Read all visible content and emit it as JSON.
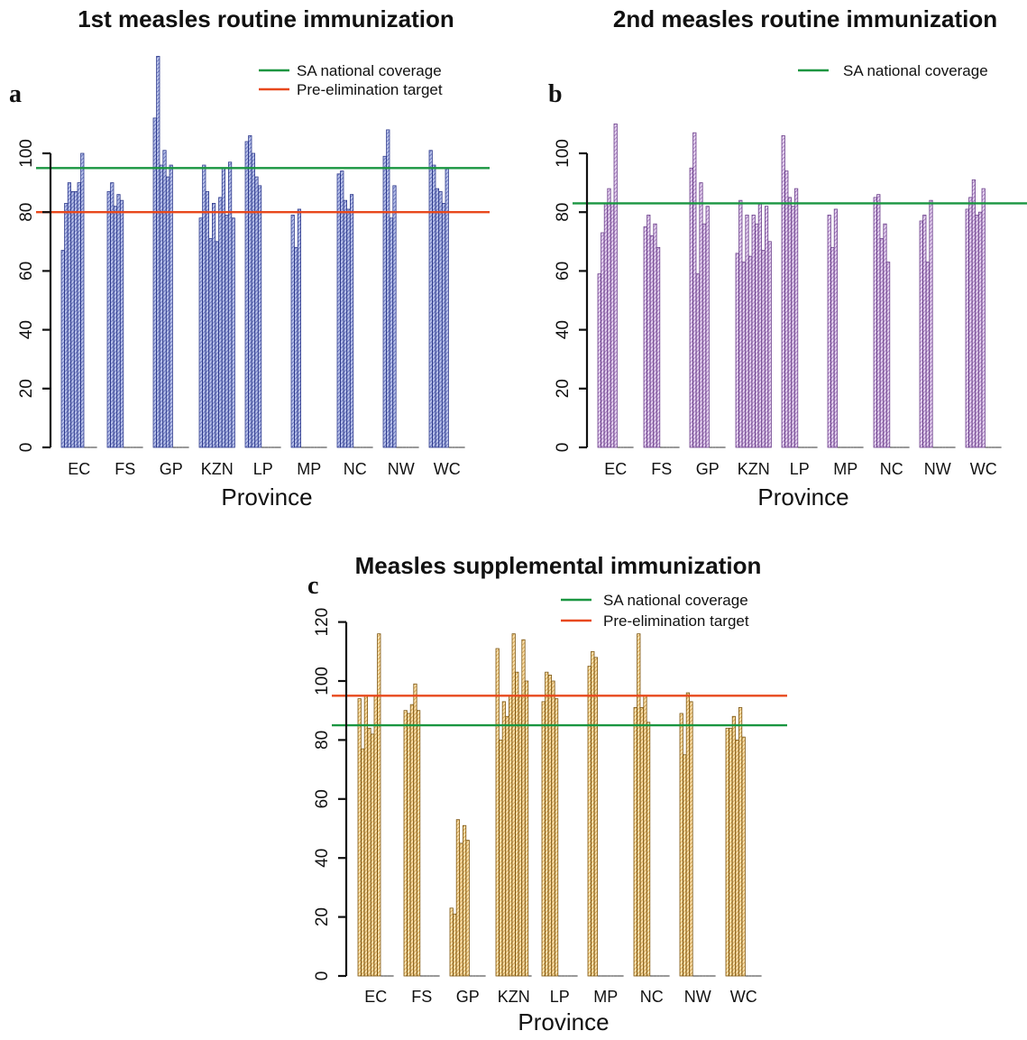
{
  "colors": {
    "national": "#1a9641",
    "target": "#e8481c",
    "axis": "#111111"
  },
  "chart_data": [
    {
      "id": "a",
      "type": "bar",
      "title": "1st measles routine immunization",
      "panel_label": "a",
      "xlabel": "Province",
      "ylabel": "",
      "ylim": [
        0,
        120
      ],
      "yticks": [
        0,
        20,
        40,
        60,
        80,
        100
      ],
      "categories": [
        "EC",
        "FS",
        "GP",
        "KZN",
        "LP",
        "MP",
        "NC",
        "NW",
        "WC"
      ],
      "bar_fill": "#8a97d6",
      "bar_stroke": "#2e3a8c",
      "groups": [
        [
          67,
          83,
          90,
          87,
          87,
          90,
          100
        ],
        [
          87,
          90,
          82,
          86,
          84
        ],
        [
          112,
          133,
          96,
          101,
          92,
          96
        ],
        [
          78,
          96,
          87,
          71,
          83,
          70,
          85,
          95,
          79,
          97,
          78
        ],
        [
          104,
          106,
          100,
          92,
          89
        ],
        [
          79,
          68,
          81
        ],
        [
          93,
          94,
          84,
          81,
          86
        ],
        [
          99,
          108,
          78,
          89
        ],
        [
          101,
          96,
          88,
          87,
          83,
          95
        ]
      ],
      "hlines": [
        {
          "name": "SA national coverage",
          "value": 95,
          "color": "#1a9641"
        },
        {
          "name": "Pre-elimination target",
          "value": 80,
          "color": "#e8481c"
        }
      ],
      "legend": [
        "SA national coverage",
        "Pre-elimination target"
      ],
      "legend_position": "top-right"
    },
    {
      "id": "b",
      "type": "bar",
      "title": "2nd measles routine immunization",
      "panel_label": "b",
      "xlabel": "Province",
      "ylabel": "",
      "ylim": [
        0,
        120
      ],
      "yticks": [
        0,
        20,
        40,
        60,
        80,
        100
      ],
      "categories": [
        "EC",
        "FS",
        "GP",
        "KZN",
        "LP",
        "MP",
        "NC",
        "NW",
        "WC"
      ],
      "bar_fill": "#c9a7df",
      "bar_stroke": "#6b3f8a",
      "groups": [
        [
          59,
          73,
          83,
          88,
          83,
          110
        ],
        [
          75,
          79,
          72,
          76,
          68
        ],
        [
          95,
          107,
          59,
          90,
          76,
          82
        ],
        [
          66,
          84,
          63,
          79,
          65,
          79,
          76,
          83,
          67,
          82,
          70
        ],
        [
          106,
          94,
          85,
          82,
          88
        ],
        [
          79,
          68,
          81
        ],
        [
          85,
          86,
          71,
          76,
          63
        ],
        [
          77,
          79,
          63,
          84
        ],
        [
          81,
          85,
          91,
          79,
          80,
          88
        ]
      ],
      "hlines": [
        {
          "name": "SA national coverage",
          "value": 83,
          "color": "#1a9641"
        }
      ],
      "legend": [
        "SA national coverage"
      ],
      "legend_position": "top-right"
    },
    {
      "id": "c",
      "type": "bar",
      "title": "Measles supplemental immunization",
      "panel_label": "c",
      "xlabel": "Province",
      "ylabel": "",
      "ylim": [
        0,
        120
      ],
      "yticks": [
        0,
        20,
        40,
        60,
        80,
        100,
        120
      ],
      "categories": [
        "EC",
        "FS",
        "GP",
        "KZN",
        "LP",
        "MP",
        "NC",
        "NW",
        "WC"
      ],
      "bar_fill": "#f7c97e",
      "bar_stroke": "#7a5410",
      "groups": [
        [
          94,
          77,
          95,
          84,
          82,
          95,
          116
        ],
        [
          90,
          89,
          92,
          99,
          90
        ],
        [
          23,
          21,
          53,
          45,
          51,
          46
        ],
        [
          111,
          80,
          93,
          88,
          95,
          116,
          103,
          95,
          114,
          100
        ],
        [
          93,
          103,
          102,
          100,
          94
        ],
        [
          105,
          110,
          108
        ],
        [
          91,
          116,
          91,
          95,
          86
        ],
        [
          89,
          75,
          96,
          93
        ],
        [
          84,
          84,
          88,
          80,
          91,
          81
        ]
      ],
      "hlines": [
        {
          "name": "SA national coverage",
          "value": 85,
          "color": "#1a9641"
        },
        {
          "name": "Pre-elimination target",
          "value": 95,
          "color": "#e8481c"
        }
      ],
      "legend": [
        "SA national coverage",
        "Pre-elimination target"
      ],
      "legend_position": "top-right"
    }
  ]
}
